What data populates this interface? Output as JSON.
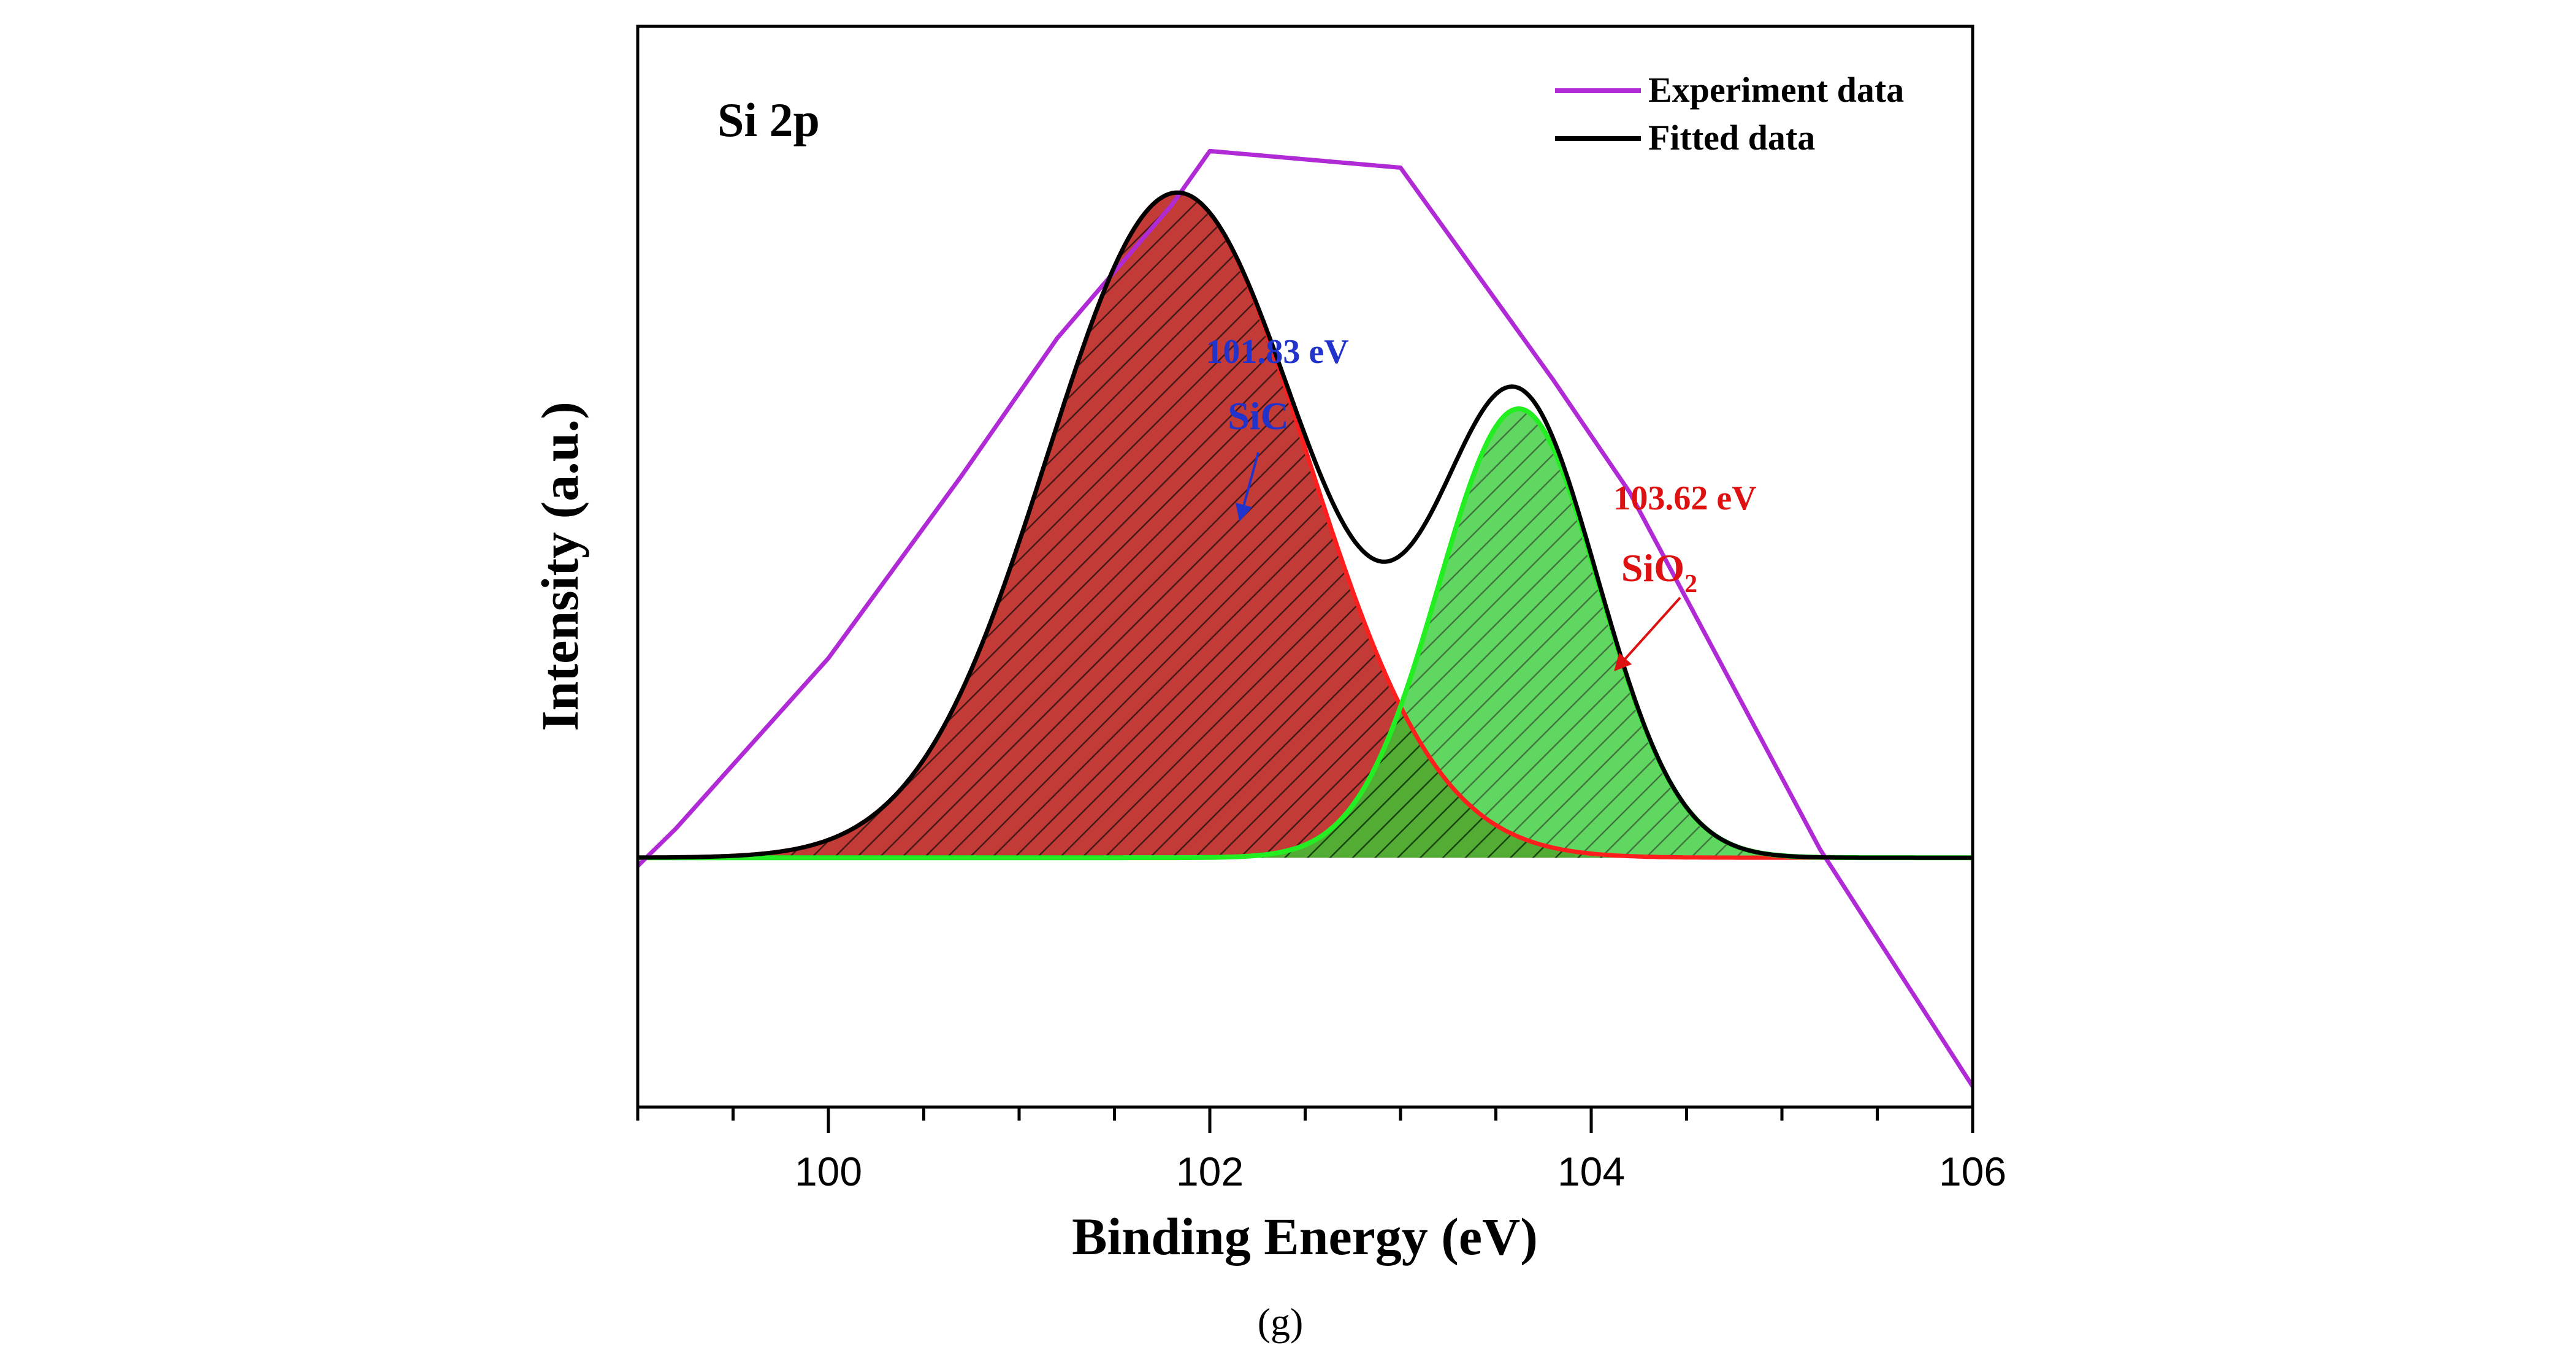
{
  "chart_data": {
    "type": "line",
    "title": "Si 2p",
    "xlabel": "Binding Energy (eV)",
    "ylabel": "Intensity (a.u.)",
    "caption": "(g)",
    "xlim": [
      99,
      106
    ],
    "ylim": [
      -0.6,
      2.0
    ],
    "x_ticks": [
      100,
      102,
      104,
      106
    ],
    "x_tick_labels": [
      "100",
      "102",
      "104",
      "106"
    ],
    "x_minor_step": 0.5,
    "y_ticks_shown": false,
    "legend": {
      "position": "top-right",
      "entries": [
        {
          "label": "Experiment data",
          "color": "#b02ad6"
        },
        {
          "label": "Fitted data",
          "color": "#000000"
        }
      ]
    },
    "series": [
      {
        "name": "Experiment data",
        "kind": "line",
        "color": "#b02ad6",
        "x": [
          99,
          99.2,
          100,
          100.7,
          101.2,
          101.8,
          102.0,
          103.0,
          103.8,
          104.2,
          104.7,
          105.2,
          106.0
        ],
        "y": [
          -0.02,
          0.07,
          0.48,
          0.92,
          1.25,
          1.57,
          1.7,
          1.66,
          1.15,
          0.88,
          0.45,
          0.02,
          -0.55
        ]
      },
      {
        "name": "SiC component",
        "kind": "gaussian_fill",
        "center": 101.83,
        "amplitude": 1.6,
        "sigma": 0.68,
        "baseline": 0.0,
        "fill_color": "#c0302b",
        "line_color": "#ff1e1e",
        "hatched": true
      },
      {
        "name": "SiO2 component",
        "kind": "gaussian_fill",
        "center": 103.62,
        "amplitude": 1.08,
        "sigma": 0.42,
        "baseline": 0.0,
        "fill_color": "#33cc33",
        "line_color": "#22ee22",
        "hatched": true
      },
      {
        "name": "Fitted data",
        "kind": "sum_line",
        "color": "#000000",
        "baseline": 0.0
      }
    ],
    "annotations": [
      {
        "name": "sic-annotation",
        "energy_label": "101.83 eV",
        "species_label": "SiC",
        "x": 101.83,
        "color": "#2233cc"
      },
      {
        "name": "sio2-annotation",
        "energy_label": "103.62 eV",
        "species_label": "SiO",
        "species_subscript": "2",
        "x": 104.1,
        "color": "#dd1111"
      }
    ]
  }
}
